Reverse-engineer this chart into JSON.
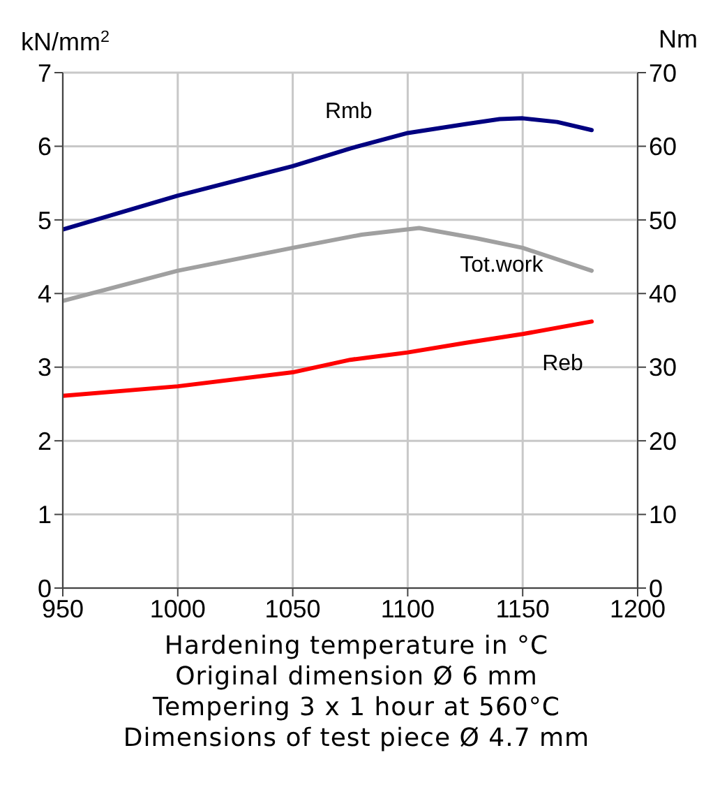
{
  "chart_data": {
    "type": "line",
    "xlabel": "Hardening temperature in °C",
    "ylabel": "kN/mm$^{2}$",
    "y2label": "Nm",
    "xlim": [
      950,
      1200
    ],
    "xticks": [
      950,
      1000,
      1050,
      1100,
      1150,
      1200
    ],
    "ylim": [
      0,
      7
    ],
    "yticks": [
      0,
      1,
      2,
      3,
      4,
      5,
      6,
      7
    ],
    "y2lim": [
      0,
      70
    ],
    "y2ticks": [
      0,
      10,
      20,
      30,
      40,
      50,
      60,
      70
    ],
    "grid": true,
    "legend": false,
    "marker": "none",
    "line_style": "solid",
    "series": [
      {
        "name": "Rmb",
        "color": "#000080",
        "x": [
          950,
          1000,
          1050,
          1075,
          1100,
          1125,
          1140,
          1150,
          1165,
          1180
        ],
        "values": [
          4.87,
          5.33,
          5.73,
          5.97,
          6.18,
          6.3,
          6.37,
          6.38,
          6.33,
          6.22
        ]
      },
      {
        "name": "Tot.work",
        "color": "#a0a0a0",
        "axis": "y2",
        "x": [
          950,
          1000,
          1050,
          1080,
          1105,
          1130,
          1150,
          1180
        ],
        "values": [
          39,
          43.1,
          46.2,
          48,
          48.9,
          47.5,
          46.2,
          43.1
        ]
      },
      {
        "name": "Reb",
        "color": "#ff0000",
        "x": [
          950,
          1000,
          1050,
          1075,
          1100,
          1125,
          1150,
          1180
        ],
        "values": [
          2.61,
          2.74,
          2.93,
          3.1,
          3.2,
          3.33,
          3.45,
          3.62
        ]
      }
    ],
    "annotations": [
      "Original dimension Ø 6 mm",
      "Tempering 3 x 1 hour at 560°C",
      "Dimensions of test piece Ø 4.7 mm"
    ]
  }
}
